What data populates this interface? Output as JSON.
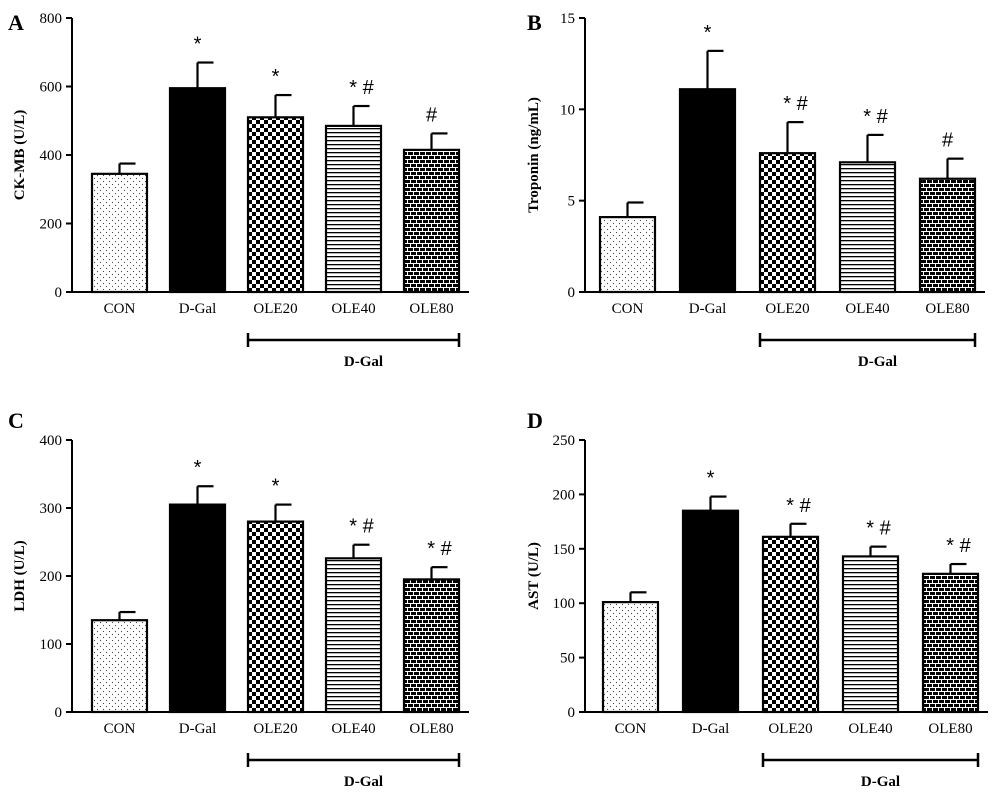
{
  "chart_data": [
    {
      "type": "bar",
      "panel": "A",
      "ylabel": "CK-MB (U/L)",
      "ylim": [
        0,
        800
      ],
      "yticks": [
        0,
        200,
        400,
        600,
        800
      ],
      "categories": [
        "CON",
        "D-Gal",
        "OLE20",
        "OLE40",
        "OLE80"
      ],
      "values": [
        345,
        595,
        510,
        485,
        415
      ],
      "errors": [
        30,
        75,
        65,
        58,
        48
      ],
      "significance": [
        "",
        "*",
        "*",
        "*#",
        "#"
      ],
      "group_label": "D-Gal",
      "group_span": [
        "OLE20",
        "OLE80"
      ]
    },
    {
      "type": "bar",
      "panel": "B",
      "ylabel": "Troponin (ng/mL)",
      "ylim": [
        0,
        15
      ],
      "yticks": [
        0,
        5,
        10,
        15
      ],
      "categories": [
        "CON",
        "D-Gal",
        "OLE20",
        "OLE40",
        "OLE80"
      ],
      "values": [
        4.1,
        11.1,
        7.6,
        7.1,
        6.2
      ],
      "errors": [
        0.8,
        2.1,
        1.7,
        1.5,
        1.1
      ],
      "significance": [
        "",
        "*",
        "*#",
        "*#",
        "#"
      ],
      "group_label": "D-Gal",
      "group_span": [
        "OLE20",
        "OLE80"
      ]
    },
    {
      "type": "bar",
      "panel": "C",
      "ylabel": "LDH (U/L)",
      "ylim": [
        0,
        400
      ],
      "yticks": [
        0,
        100,
        200,
        300,
        400
      ],
      "categories": [
        "CON",
        "D-Gal",
        "OLE20",
        "OLE40",
        "OLE80"
      ],
      "values": [
        135,
        305,
        280,
        226,
        195
      ],
      "errors": [
        12,
        27,
        25,
        20,
        18
      ],
      "significance": [
        "",
        "*",
        "*",
        "*#",
        "*#"
      ],
      "group_label": "D-Gal",
      "group_span": [
        "OLE20",
        "OLE80"
      ]
    },
    {
      "type": "bar",
      "panel": "D",
      "ylabel": "AST (U/L)",
      "ylim": [
        0,
        250
      ],
      "yticks": [
        0,
        50,
        100,
        150,
        200,
        250
      ],
      "categories": [
        "CON",
        "D-Gal",
        "OLE20",
        "OLE40",
        "OLE80"
      ],
      "values": [
        101,
        185,
        161,
        143,
        127
      ],
      "errors": [
        9,
        13,
        12,
        9,
        9
      ],
      "significance": [
        "",
        "*",
        "*#",
        "*#",
        "*#"
      ],
      "group_label": "D-Gal",
      "group_span": [
        "OLE20",
        "OLE80"
      ]
    }
  ],
  "bar_patterns": [
    "dots",
    "solid",
    "checker",
    "hlines",
    "bricks"
  ],
  "colors": {
    "bar_fill": "#ffffff",
    "bar_stroke": "#000000",
    "solid_fill": "#000000"
  }
}
